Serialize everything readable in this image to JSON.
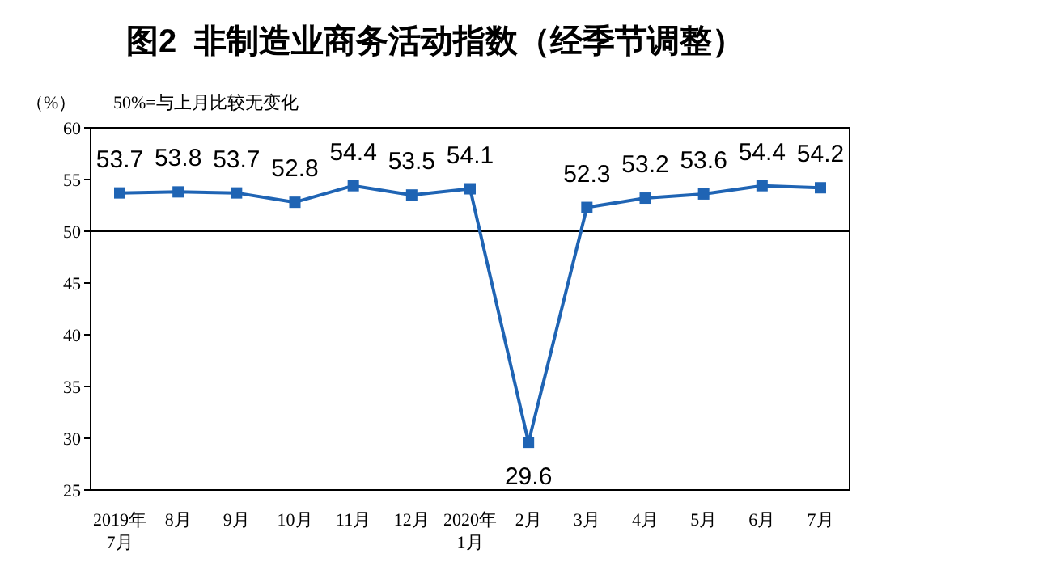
{
  "chart_data": {
    "type": "line",
    "title": "图2  非制造业商务活动指数（经季节调整）",
    "ylabel": "（%）",
    "annotations": [
      "50%=与上月比较无变化"
    ],
    "categories": [
      "2019年\n7月",
      "8月",
      "9月",
      "10月",
      "11月",
      "12月",
      "2020年\n1月",
      "2月",
      "3月",
      "4月",
      "5月",
      "6月",
      "7月"
    ],
    "series": [
      {
        "color": "#1f64b4",
        "values": [
          53.7,
          53.8,
          53.7,
          52.8,
          54.4,
          53.5,
          54.1,
          29.6,
          52.3,
          53.2,
          53.6,
          54.4,
          54.2
        ]
      }
    ],
    "ylim": [
      25,
      60
    ],
    "yticks": [
      25,
      30,
      35,
      40,
      45,
      50,
      55,
      60
    ],
    "ref_lines": [
      {
        "axis": "y",
        "value": 50,
        "color": "#000000"
      }
    ],
    "data_labels": true,
    "marker": "square",
    "line_style": "solid",
    "grid": false
  }
}
